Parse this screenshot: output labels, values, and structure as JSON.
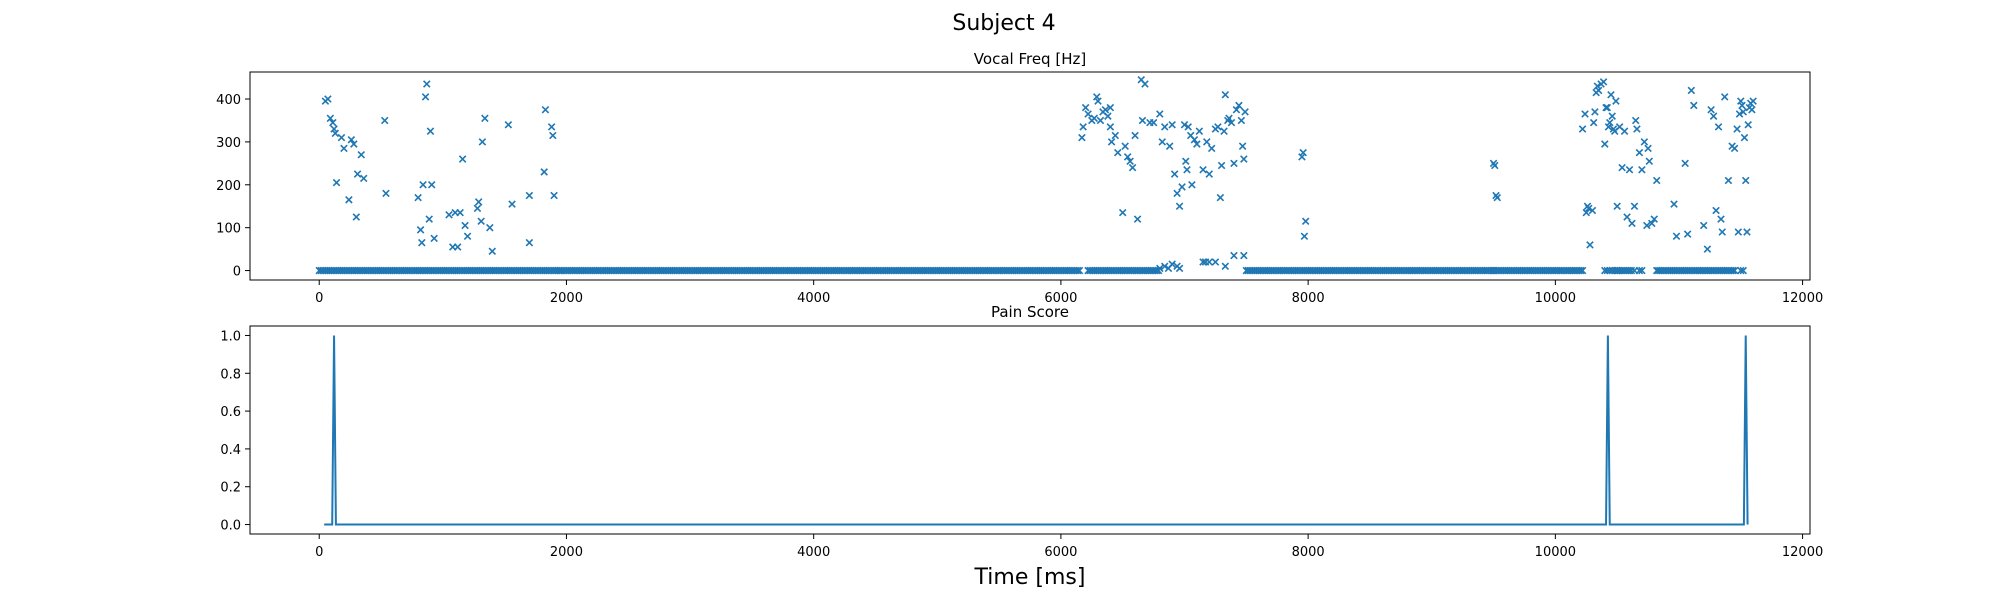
{
  "figure": {
    "suptitle": "Subject 4",
    "xlabel": "Time [ms]"
  },
  "chart_data": [
    {
      "type": "scatter",
      "title": "Vocal Freq [Hz]",
      "marker": "x",
      "color": "#1f77b4",
      "xlim": [
        -560,
        12060
      ],
      "ylim": [
        -22,
        463
      ],
      "xticks": [
        0,
        2000,
        4000,
        6000,
        8000,
        10000,
        12000
      ],
      "yticks": [
        0,
        100,
        200,
        300,
        400
      ],
      "grid": false,
      "zero_runs": [
        [
          0,
          1950
        ],
        [
          1950,
          6150
        ],
        [
          6220,
          6800
        ],
        [
          7500,
          9500
        ],
        [
          9500,
          10230
        ],
        [
          10480,
          10620
        ],
        [
          10820,
          11450
        ]
      ],
      "zero_step": 15,
      "points": [
        [
          50,
          395
        ],
        [
          70,
          400
        ],
        [
          90,
          355
        ],
        [
          110,
          345
        ],
        [
          120,
          330
        ],
        [
          130,
          320
        ],
        [
          140,
          205
        ],
        [
          180,
          310
        ],
        [
          200,
          285
        ],
        [
          240,
          165
        ],
        [
          260,
          305
        ],
        [
          280,
          295
        ],
        [
          300,
          125
        ],
        [
          310,
          225
        ],
        [
          340,
          270
        ],
        [
          360,
          215
        ],
        [
          530,
          350
        ],
        [
          540,
          180
        ],
        [
          800,
          170
        ],
        [
          820,
          95
        ],
        [
          830,
          65
        ],
        [
          840,
          200
        ],
        [
          860,
          405
        ],
        [
          870,
          435
        ],
        [
          890,
          120
        ],
        [
          900,
          325
        ],
        [
          910,
          200
        ],
        [
          930,
          75
        ],
        [
          1050,
          130
        ],
        [
          1080,
          55
        ],
        [
          1100,
          135
        ],
        [
          1120,
          55
        ],
        [
          1140,
          135
        ],
        [
          1160,
          260
        ],
        [
          1180,
          105
        ],
        [
          1200,
          80
        ],
        [
          1280,
          145
        ],
        [
          1290,
          160
        ],
        [
          1310,
          115
        ],
        [
          1320,
          300
        ],
        [
          1340,
          355
        ],
        [
          1380,
          100
        ],
        [
          1400,
          45
        ],
        [
          1530,
          340
        ],
        [
          1560,
          155
        ],
        [
          1700,
          175
        ],
        [
          1700,
          65
        ],
        [
          1820,
          230
        ],
        [
          1830,
          375
        ],
        [
          1880,
          335
        ],
        [
          1890,
          315
        ],
        [
          1900,
          175
        ],
        [
          6170,
          310
        ],
        [
          6180,
          335
        ],
        [
          6200,
          380
        ],
        [
          6220,
          365
        ],
        [
          6250,
          350
        ],
        [
          6270,
          355
        ],
        [
          6290,
          405
        ],
        [
          6300,
          395
        ],
        [
          6320,
          350
        ],
        [
          6340,
          370
        ],
        [
          6360,
          375
        ],
        [
          6380,
          360
        ],
        [
          6400,
          380
        ],
        [
          6400,
          335
        ],
        [
          6410,
          300
        ],
        [
          6440,
          315
        ],
        [
          6460,
          275
        ],
        [
          6500,
          135
        ],
        [
          6520,
          290
        ],
        [
          6540,
          265
        ],
        [
          6560,
          255
        ],
        [
          6580,
          240
        ],
        [
          6600,
          315
        ],
        [
          6620,
          120
        ],
        [
          6650,
          445
        ],
        [
          6660,
          350
        ],
        [
          6680,
          435
        ],
        [
          6720,
          345
        ],
        [
          6750,
          345
        ],
        [
          6800,
          365
        ],
        [
          6820,
          300
        ],
        [
          6840,
          335
        ],
        [
          6880,
          290
        ],
        [
          6900,
          340
        ],
        [
          6920,
          225
        ],
        [
          6940,
          180
        ],
        [
          6960,
          150
        ],
        [
          6980,
          195
        ],
        [
          7000,
          340
        ],
        [
          7010,
          255
        ],
        [
          7020,
          235
        ],
        [
          7030,
          335
        ],
        [
          7050,
          315
        ],
        [
          7060,
          200
        ],
        [
          7080,
          305
        ],
        [
          7100,
          295
        ],
        [
          7120,
          325
        ],
        [
          7150,
          235
        ],
        [
          7180,
          300
        ],
        [
          7200,
          225
        ],
        [
          7220,
          285
        ],
        [
          7250,
          330
        ],
        [
          7270,
          335
        ],
        [
          7290,
          170
        ],
        [
          7300,
          245
        ],
        [
          7320,
          325
        ],
        [
          7330,
          410
        ],
        [
          7350,
          350
        ],
        [
          7360,
          355
        ],
        [
          7380,
          345
        ],
        [
          7400,
          250
        ],
        [
          7420,
          375
        ],
        [
          7440,
          385
        ],
        [
          7460,
          350
        ],
        [
          7470,
          290
        ],
        [
          7480,
          260
        ],
        [
          7490,
          370
        ],
        [
          6800,
          5
        ],
        [
          6840,
          10
        ],
        [
          6870,
          5
        ],
        [
          6900,
          15
        ],
        [
          6940,
          10
        ],
        [
          6960,
          5
        ],
        [
          7150,
          20
        ],
        [
          7170,
          20
        ],
        [
          7200,
          20
        ],
        [
          7250,
          20
        ],
        [
          7330,
          10
        ],
        [
          7400,
          35
        ],
        [
          7480,
          35
        ],
        [
          7950,
          265
        ],
        [
          7960,
          275
        ],
        [
          7970,
          80
        ],
        [
          7980,
          115
        ],
        [
          9500,
          250
        ],
        [
          9510,
          245
        ],
        [
          9520,
          175
        ],
        [
          9530,
          170
        ],
        [
          10220,
          330
        ],
        [
          10240,
          365
        ],
        [
          10250,
          135
        ],
        [
          10260,
          150
        ],
        [
          10270,
          145
        ],
        [
          10280,
          60
        ],
        [
          10300,
          140
        ],
        [
          10310,
          345
        ],
        [
          10320,
          370
        ],
        [
          10330,
          415
        ],
        [
          10340,
          430
        ],
        [
          10350,
          420
        ],
        [
          10370,
          435
        ],
        [
          10390,
          440
        ],
        [
          10400,
          295
        ],
        [
          10410,
          380
        ],
        [
          10420,
          380
        ],
        [
          10430,
          335
        ],
        [
          10440,
          345
        ],
        [
          10450,
          410
        ],
        [
          10460,
          360
        ],
        [
          10470,
          330
        ],
        [
          10480,
          325
        ],
        [
          10490,
          395
        ],
        [
          10500,
          150
        ],
        [
          10520,
          335
        ],
        [
          10540,
          240
        ],
        [
          10560,
          325
        ],
        [
          10580,
          125
        ],
        [
          10600,
          235
        ],
        [
          10620,
          110
        ],
        [
          10640,
          150
        ],
        [
          10650,
          350
        ],
        [
          10660,
          330
        ],
        [
          10680,
          275
        ],
        [
          10700,
          235
        ],
        [
          10720,
          300
        ],
        [
          10740,
          105
        ],
        [
          10750,
          285
        ],
        [
          10760,
          255
        ],
        [
          10780,
          110
        ],
        [
          10800,
          120
        ],
        [
          10820,
          210
        ],
        [
          10960,
          155
        ],
        [
          10980,
          80
        ],
        [
          11050,
          250
        ],
        [
          11070,
          85
        ],
        [
          11100,
          420
        ],
        [
          11120,
          385
        ],
        [
          11200,
          105
        ],
        [
          11230,
          50
        ],
        [
          11260,
          375
        ],
        [
          11280,
          360
        ],
        [
          11300,
          140
        ],
        [
          11320,
          335
        ],
        [
          11340,
          120
        ],
        [
          11350,
          90
        ],
        [
          11370,
          405
        ],
        [
          11400,
          210
        ],
        [
          11430,
          290
        ],
        [
          11450,
          285
        ],
        [
          11470,
          330
        ],
        [
          11480,
          90
        ],
        [
          11490,
          365
        ],
        [
          11500,
          395
        ],
        [
          11510,
          385
        ],
        [
          11520,
          370
        ],
        [
          11530,
          310
        ],
        [
          11540,
          210
        ],
        [
          11550,
          90
        ],
        [
          11560,
          340
        ],
        [
          11570,
          380
        ],
        [
          11580,
          390
        ],
        [
          11590,
          375
        ],
        [
          11600,
          395
        ],
        [
          10400,
          0
        ],
        [
          10420,
          0
        ],
        [
          10440,
          0
        ],
        [
          10460,
          0
        ],
        [
          10500,
          0
        ],
        [
          10640,
          0
        ],
        [
          10680,
          0
        ],
        [
          10700,
          0
        ],
        [
          11500,
          0
        ],
        [
          11520,
          0
        ]
      ]
    },
    {
      "type": "line",
      "title": "Pain Score",
      "color": "#1f77b4",
      "xlim": [
        -560,
        12060
      ],
      "ylim": [
        -0.05,
        1.05
      ],
      "xticks": [
        0,
        2000,
        4000,
        6000,
        8000,
        10000,
        12000
      ],
      "yticks": [
        0.0,
        0.2,
        0.4,
        0.6,
        0.8,
        1.0
      ],
      "grid": false,
      "x": [
        40,
        105,
        120,
        135,
        10390,
        10410,
        10425,
        10440,
        11510,
        11525,
        11540,
        11555
      ],
      "y": [
        0,
        0,
        1,
        0,
        0,
        0,
        1,
        0,
        0,
        0,
        1,
        0
      ]
    }
  ]
}
